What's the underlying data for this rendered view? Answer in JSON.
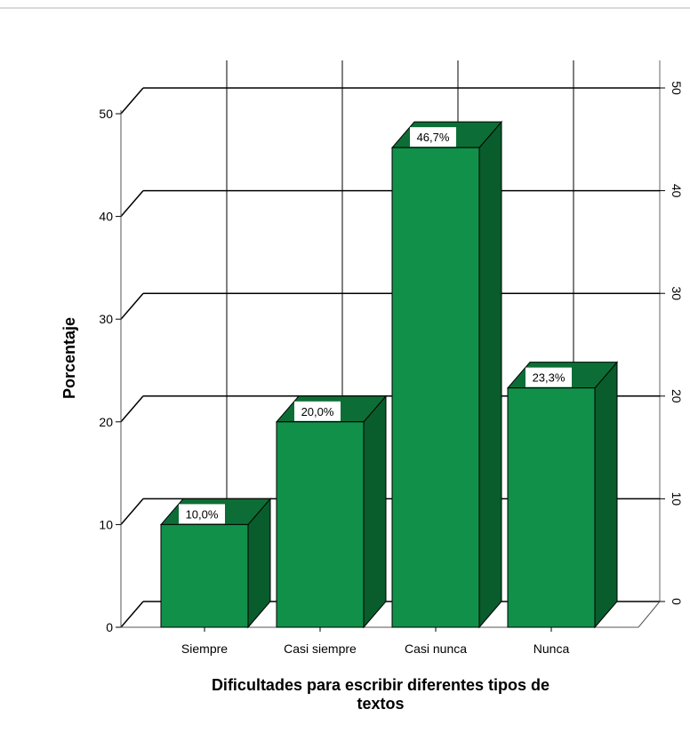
{
  "chart_data": {
    "type": "bar",
    "style": "3d",
    "categories": [
      "Siempre",
      "Casi siempre",
      "Casi nunca",
      "Nunca"
    ],
    "values": [
      10.0,
      20.0,
      46.7,
      23.3
    ],
    "data_labels": [
      "10,0%",
      "20,0%",
      "46,7%",
      "23,3%"
    ],
    "xlabel": "Dificultades para escribir diferentes tipos de textos",
    "xlabel_lines": [
      "Dificultades para escribir diferentes tipos de",
      "textos"
    ],
    "ylabel": "Porcentaje",
    "ylim": [
      0,
      50
    ],
    "yticks": [
      0,
      10,
      20,
      30,
      40,
      50
    ],
    "grid": true,
    "colors": {
      "bar_front": "#11904a",
      "bar_side": "#095c2c",
      "bar_top": "#0c6e36",
      "grid": "#000000",
      "label_bg": "#ffffff"
    }
  }
}
